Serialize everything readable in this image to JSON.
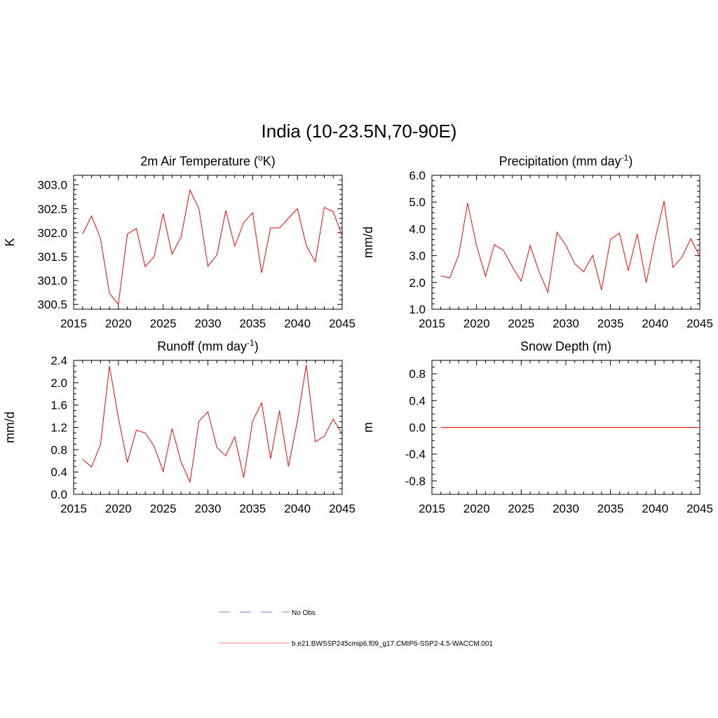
{
  "figure": {
    "title": "India (10-23.5N,70-90E)"
  },
  "chart_data": [
    {
      "id": "temp",
      "type": "line",
      "title": "2m Air Temperature (",
      "title_sup": "o",
      "title_after": "K)",
      "ylabel": "K",
      "xlim": [
        2015,
        2045
      ],
      "ylim": [
        300.4,
        303.2
      ],
      "xticks": [
        2015,
        2020,
        2025,
        2030,
        2035,
        2040,
        2045
      ],
      "yticks": [
        300.5,
        301.0,
        301.5,
        302.0,
        302.5,
        303.0
      ],
      "ytick_labels": [
        "300.5",
        "301.0",
        "301.5",
        "302.0",
        "302.5",
        "303.0"
      ],
      "series_color": "#ff0000",
      "x": [
        2016,
        2017,
        2018,
        2019,
        2020,
        2021,
        2022,
        2023,
        2024,
        2025,
        2026,
        2027,
        2028,
        2029,
        2030,
        2031,
        2032,
        2033,
        2034,
        2035,
        2036,
        2037,
        2038,
        2039,
        2040,
        2041,
        2042,
        2043,
        2044,
        2045
      ],
      "values": [
        301.97,
        302.35,
        301.88,
        300.73,
        300.5,
        301.97,
        302.09,
        301.29,
        301.5,
        302.4,
        301.55,
        301.91,
        302.89,
        302.5,
        301.3,
        301.53,
        302.46,
        301.72,
        302.21,
        302.42,
        301.16,
        302.1,
        302.1,
        302.3,
        302.5,
        301.73,
        301.39,
        302.53,
        302.44,
        301.93
      ]
    },
    {
      "id": "precip",
      "type": "line",
      "title": "Precipitation (mm day",
      "title_sup": "-1",
      "title_after": ")",
      "ylabel": "mm/d",
      "xlim": [
        2015,
        2045
      ],
      "ylim": [
        1.0,
        6.0
      ],
      "xticks": [
        2015,
        2020,
        2025,
        2030,
        2035,
        2040,
        2045
      ],
      "yticks": [
        1.0,
        2.0,
        3.0,
        4.0,
        5.0,
        6.0
      ],
      "ytick_labels": [
        "1.0",
        "2.0",
        "3.0",
        "4.0",
        "5.0",
        "6.0"
      ],
      "series_color": "#ff0000",
      "x": [
        2016,
        2017,
        2018,
        2019,
        2020,
        2021,
        2022,
        2023,
        2024,
        2025,
        2026,
        2027,
        2028,
        2029,
        2030,
        2031,
        2032,
        2033,
        2034,
        2035,
        2036,
        2037,
        2038,
        2039,
        2040,
        2041,
        2042,
        2043,
        2044,
        2045
      ],
      "values": [
        2.24,
        2.17,
        3.02,
        4.96,
        3.37,
        2.23,
        3.41,
        3.2,
        2.59,
        2.05,
        3.38,
        2.4,
        1.63,
        3.87,
        3.39,
        2.7,
        2.4,
        3.01,
        1.72,
        3.61,
        3.84,
        2.44,
        3.81,
        1.99,
        3.6,
        5.04,
        2.56,
        2.94,
        3.63,
        2.96
      ]
    },
    {
      "id": "runoff",
      "type": "line",
      "title": "Runoff (mm day",
      "title_sup": "-1",
      "title_after": ")",
      "ylabel": "mm/d",
      "xlim": [
        2015,
        2045
      ],
      "ylim": [
        0.0,
        2.4
      ],
      "xticks": [
        2015,
        2020,
        2025,
        2030,
        2035,
        2040,
        2045
      ],
      "yticks": [
        0.0,
        0.4,
        0.8,
        1.2,
        1.6,
        2.0,
        2.4
      ],
      "ytick_labels": [
        "0.0",
        "0.4",
        "0.8",
        "1.2",
        "1.6",
        "2.0",
        "2.4"
      ],
      "series_color": "#ff0000",
      "x": [
        2016,
        2017,
        2018,
        2019,
        2020,
        2021,
        2022,
        2023,
        2024,
        2025,
        2026,
        2027,
        2028,
        2029,
        2030,
        2031,
        2032,
        2033,
        2034,
        2035,
        2036,
        2037,
        2038,
        2039,
        2040,
        2041,
        2042,
        2043,
        2044,
        2045
      ],
      "values": [
        0.63,
        0.49,
        0.89,
        2.3,
        1.38,
        0.57,
        1.15,
        1.1,
        0.86,
        0.41,
        1.18,
        0.58,
        0.22,
        1.31,
        1.48,
        0.84,
        0.69,
        1.03,
        0.3,
        1.31,
        1.64,
        0.64,
        1.5,
        0.5,
        1.32,
        2.32,
        0.94,
        1.04,
        1.35,
        1.08
      ]
    },
    {
      "id": "snow",
      "type": "line",
      "title": "Snow Depth (m)",
      "title_sup": "",
      "title_after": "",
      "ylabel": "m",
      "xlim": [
        2015,
        2045
      ],
      "ylim": [
        -1.0,
        1.0
      ],
      "xticks": [
        2015,
        2020,
        2025,
        2030,
        2035,
        2040,
        2045
      ],
      "yticks": [
        -0.8,
        -0.4,
        0.0,
        0.4,
        0.8
      ],
      "ytick_labels": [
        "-0.8",
        "-0.4",
        "0.0",
        "0.4",
        "0.8"
      ],
      "series_color": "#ff0000",
      "x": [
        2016,
        2017,
        2018,
        2019,
        2020,
        2021,
        2022,
        2023,
        2024,
        2025,
        2026,
        2027,
        2028,
        2029,
        2030,
        2031,
        2032,
        2033,
        2034,
        2035,
        2036,
        2037,
        2038,
        2039,
        2040,
        2041,
        2042,
        2043,
        2044,
        2045
      ],
      "values": [
        0,
        0,
        0,
        0,
        0,
        0,
        0,
        0,
        0,
        0,
        0,
        0,
        0,
        0,
        0,
        0,
        0,
        0,
        0,
        0,
        0,
        0,
        0,
        0,
        0,
        0,
        0,
        0,
        0,
        0
      ]
    }
  ],
  "legend": {
    "items": [
      {
        "label": "No Obs",
        "style": "dashed",
        "color": "#9999dd"
      },
      {
        "label": "b.e21.BWSSP245cmip6.f09_g17.CMIP6-SSP2-4.5-WACCM.001",
        "style": "solid",
        "color": "#ff9999"
      }
    ]
  }
}
